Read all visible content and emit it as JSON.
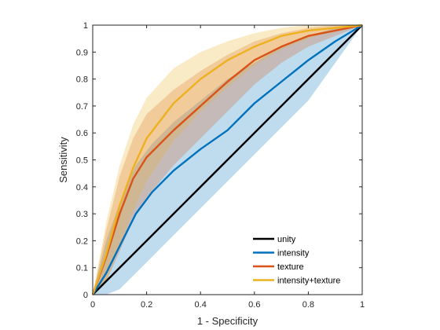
{
  "chart_data": {
    "type": "line",
    "title": "",
    "xlabel": "1 - Specificity",
    "ylabel": "Sensitivity",
    "xlim": [
      0,
      1
    ],
    "ylim": [
      0,
      1
    ],
    "xticks": [
      "0",
      "0.2",
      "0.4",
      "0.6",
      "0.8",
      "1"
    ],
    "yticks": [
      "0",
      "0.1",
      "0.2",
      "0.3",
      "0.4",
      "0.5",
      "0.6",
      "0.7",
      "0.8",
      "0.9",
      "1"
    ],
    "grid": false,
    "legend_position": "bottom-right",
    "series": [
      {
        "name": "unity",
        "color": "#000000",
        "x": [
          0,
          1
        ],
        "y": [
          0,
          1
        ]
      },
      {
        "name": "intensity",
        "color": "#0072bd",
        "x": [
          0,
          0.05,
          0.1,
          0.16,
          0.22,
          0.3,
          0.4,
          0.5,
          0.6,
          0.7,
          0.8,
          0.9,
          1
        ],
        "y": [
          0,
          0.08,
          0.18,
          0.3,
          0.38,
          0.46,
          0.54,
          0.61,
          0.71,
          0.79,
          0.87,
          0.94,
          1
        ],
        "y_lower": [
          0,
          0.0,
          0.02,
          0.08,
          0.14,
          0.22,
          0.32,
          0.42,
          0.52,
          0.62,
          0.72,
          0.86,
          1
        ],
        "y_upper": [
          0,
          0.2,
          0.34,
          0.48,
          0.56,
          0.64,
          0.72,
          0.8,
          0.86,
          0.92,
          0.96,
          0.99,
          1
        ]
      },
      {
        "name": "texture",
        "color": "#d95319",
        "x": [
          0,
          0.05,
          0.1,
          0.15,
          0.2,
          0.3,
          0.4,
          0.5,
          0.6,
          0.7,
          0.8,
          0.9,
          1
        ],
        "y": [
          0,
          0.14,
          0.3,
          0.43,
          0.51,
          0.61,
          0.7,
          0.79,
          0.87,
          0.92,
          0.96,
          0.98,
          1
        ],
        "y_lower": [
          0,
          0.05,
          0.16,
          0.28,
          0.36,
          0.48,
          0.58,
          0.68,
          0.78,
          0.86,
          0.92,
          0.96,
          1
        ],
        "y_upper": [
          0,
          0.24,
          0.44,
          0.58,
          0.67,
          0.76,
          0.83,
          0.89,
          0.94,
          0.97,
          0.99,
          1,
          1
        ]
      },
      {
        "name": "intensity+texture",
        "color": "#edb120",
        "x": [
          0,
          0.05,
          0.1,
          0.15,
          0.2,
          0.3,
          0.4,
          0.5,
          0.6,
          0.7,
          0.8,
          0.9,
          1
        ],
        "y": [
          0,
          0.15,
          0.33,
          0.47,
          0.58,
          0.71,
          0.8,
          0.87,
          0.92,
          0.96,
          0.98,
          0.99,
          1
        ],
        "y_lower": [
          0,
          0.05,
          0.18,
          0.31,
          0.42,
          0.57,
          0.68,
          0.77,
          0.85,
          0.91,
          0.95,
          0.98,
          1
        ],
        "y_upper": [
          0,
          0.27,
          0.48,
          0.63,
          0.73,
          0.84,
          0.9,
          0.94,
          0.97,
          0.99,
          1,
          1,
          1
        ]
      }
    ]
  }
}
